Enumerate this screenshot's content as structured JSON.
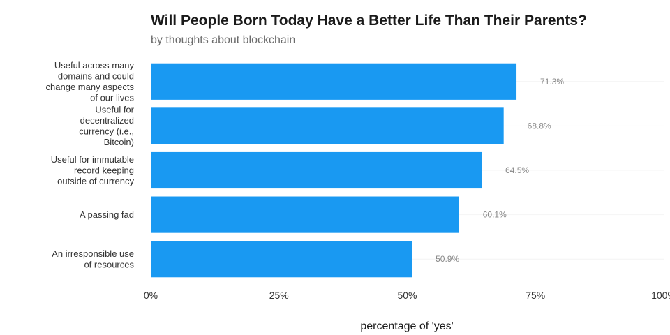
{
  "chart_data": {
    "type": "bar",
    "orientation": "horizontal",
    "title": "Will People Born Today Have a Better Life Than Their Parents?",
    "subtitle": "by thoughts about blockchain",
    "xlabel": "percentage of 'yes'",
    "ylabel": "",
    "xlim": [
      0,
      100
    ],
    "x_ticks": [
      0,
      25,
      50,
      75,
      100
    ],
    "x_tick_labels": [
      "0%",
      "25%",
      "50%",
      "75%",
      "100%"
    ],
    "categories": [
      [
        "Useful across many",
        "domains and could",
        "change many aspects",
        "of our lives"
      ],
      [
        "Useful for",
        "decentralized",
        "currency (i.e.,",
        "Bitcoin)"
      ],
      [
        "Useful for immutable",
        "record keeping",
        "outside of currency"
      ],
      [
        "A passing fad"
      ],
      [
        "An irresponsible use",
        "of resources"
      ]
    ],
    "values": [
      71.3,
      68.8,
      64.5,
      60.1,
      50.9
    ],
    "value_labels": [
      "71.3%",
      "68.8%",
      "64.5%",
      "60.1%",
      "50.9%"
    ],
    "bar_color": "#1999f2",
    "grid": true,
    "legend": "none"
  }
}
